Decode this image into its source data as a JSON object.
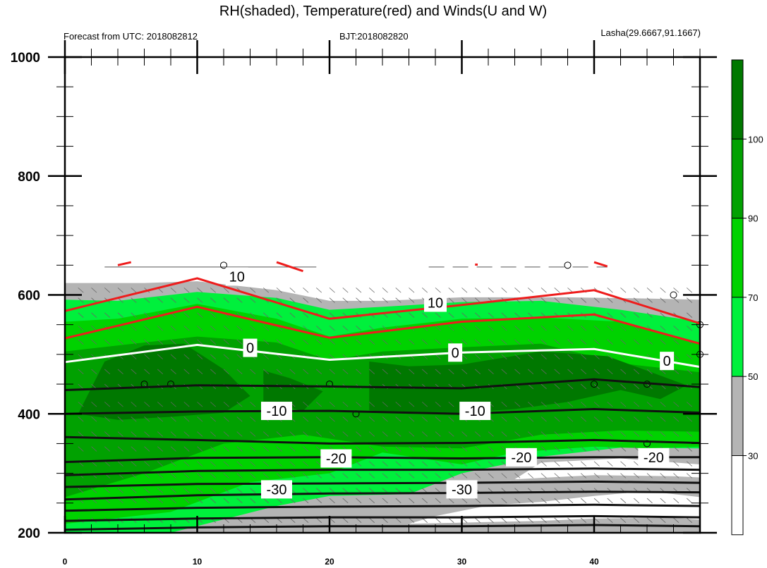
{
  "header": {
    "title": "RH(shaded), Temperature(red) and Winds(U and W)",
    "forecast": "Forecast from UTC: 2018082812",
    "bjt": "BJT:2018082820",
    "location": "Lasha(29.6667,91.1667)"
  },
  "chart_data": {
    "type": "contour",
    "title": "RH(shaded), Temperature(red) and Winds(U and W)",
    "xlim": [
      0,
      48
    ],
    "ylim": [
      1000,
      200
    ],
    "x_ticks": [
      0,
      10,
      20,
      30,
      40
    ],
    "y_ticks": [
      200,
      400,
      600,
      800,
      1000
    ],
    "rh_colorbar": {
      "levels": [
        30,
        50,
        70,
        90,
        100
      ],
      "colors": [
        "#ffffff",
        "#b4b4b4",
        "#00f03c",
        "#00d200",
        "#01a101",
        "#007800"
      ]
    },
    "temperature_labels": [
      {
        "text": "-30",
        "x": 16,
        "p": 273
      },
      {
        "text": "-30",
        "x": 30,
        "p": 273
      },
      {
        "text": "-20",
        "x": 20.5,
        "p": 325
      },
      {
        "text": "-20",
        "x": 34.5,
        "p": 327
      },
      {
        "text": "-20",
        "x": 44.5,
        "p": 327
      },
      {
        "text": "-10",
        "x": 16,
        "p": 405
      },
      {
        "text": "-10",
        "x": 31,
        "p": 405
      },
      {
        "text": "0",
        "x": 14,
        "p": 511
      },
      {
        "text": "0",
        "x": 29.5,
        "p": 503
      },
      {
        "text": "0",
        "x": 45.5,
        "p": 489
      },
      {
        "text": "10",
        "x": 28,
        "p": 587
      },
      {
        "text": "10",
        "x": 13,
        "p": 631
      }
    ],
    "contours": {
      "black_isotherms": [
        {
          "x": [
            0,
            10,
            20,
            30,
            40,
            48
          ],
          "p": [
            205,
            209,
            211,
            211,
            213,
            211
          ]
        },
        {
          "x": [
            0,
            10,
            20,
            30,
            40,
            48
          ],
          "p": [
            220,
            224,
            226,
            226,
            228,
            226
          ]
        },
        {
          "x": [
            0,
            10,
            20,
            30,
            40,
            48
          ],
          "p": [
            237,
            242,
            244,
            245,
            247,
            245
          ]
        },
        {
          "x": [
            0,
            10,
            20,
            30,
            40,
            48
          ],
          "p": [
            256,
            263,
            266,
            267,
            269,
            268
          ]
        },
        {
          "x": [
            0,
            10,
            20,
            30,
            40,
            48
          ],
          "p": [
            277,
            282,
            283,
            284,
            286,
            284
          ]
        },
        {
          "x": [
            0,
            10,
            20,
            30,
            40,
            48
          ],
          "p": [
            297,
            304,
            306,
            306,
            308,
            306
          ]
        },
        {
          "x": [
            0,
            10,
            20,
            30,
            40,
            48
          ],
          "p": [
            319,
            326,
            327,
            325,
            327,
            327
          ]
        },
        {
          "x": [
            0,
            10,
            20,
            30,
            40,
            48
          ],
          "p": [
            361,
            356,
            350,
            351,
            356,
            351
          ]
        },
        {
          "x": [
            0,
            10,
            20,
            30,
            40,
            48
          ],
          "p": [
            400,
            404,
            405,
            400,
            408,
            402
          ]
        },
        {
          "x": [
            0,
            10,
            20,
            30,
            40,
            48
          ],
          "p": [
            440,
            448,
            446,
            443,
            458,
            445
          ]
        }
      ],
      "zero_isotherm": {
        "x": [
          0,
          10,
          20,
          30,
          40,
          48
        ],
        "p": [
          487,
          516,
          491,
          503,
          509,
          479
        ]
      },
      "red_isotherms": [
        {
          "x": [
            0,
            10,
            20,
            30,
            40,
            48
          ],
          "p": [
            527,
            580,
            528,
            555,
            567,
            518
          ]
        },
        {
          "x": [
            0,
            10,
            20,
            30,
            40,
            48
          ],
          "p": [
            573,
            628,
            560,
            583,
            608,
            552
          ]
        }
      ]
    }
  },
  "colorbar_labels": [
    "100",
    "90",
    "70",
    "50",
    "30"
  ]
}
